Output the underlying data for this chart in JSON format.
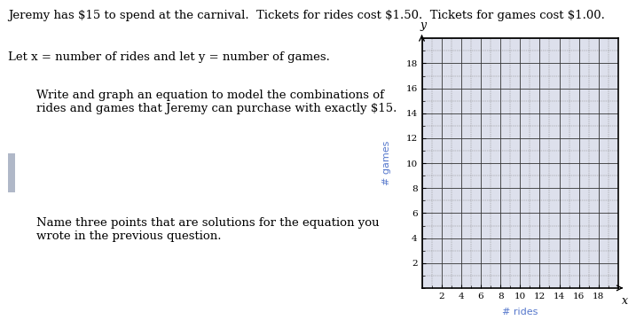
{
  "title_line1": "Jeremy has $15 to spend at the carnival.  Tickets for rides cost $1.50.  Tickets for games cost $1.00.",
  "title_line2": "Let x = number of rides and let y = number of games.",
  "question1": "Write and graph an equation to model the combinations of\nrides and games that Jeremy can purchase with exactly $15.",
  "question2": "Name three points that are solutions for the equation you\nwrote in the previous question.",
  "xlabel": "# rides",
  "ylabel": "# games",
  "x_label_var": "x",
  "y_label_var": "y",
  "xmin": 0,
  "xmax": 20,
  "ymin": 0,
  "ymax": 20,
  "xticks": [
    2,
    4,
    6,
    8,
    10,
    12,
    14,
    16,
    18
  ],
  "yticks": [
    2,
    4,
    6,
    8,
    10,
    12,
    14,
    16,
    18
  ],
  "grid_major_color": "#333333",
  "bg_color": "#ffffff",
  "axis_bg_color": "#dde0ec",
  "title_fontsize": 9.5,
  "question_fontsize": 9.5,
  "label_fontsize": 8,
  "tick_fontsize": 7.5,
  "link_color": "#5577cc"
}
